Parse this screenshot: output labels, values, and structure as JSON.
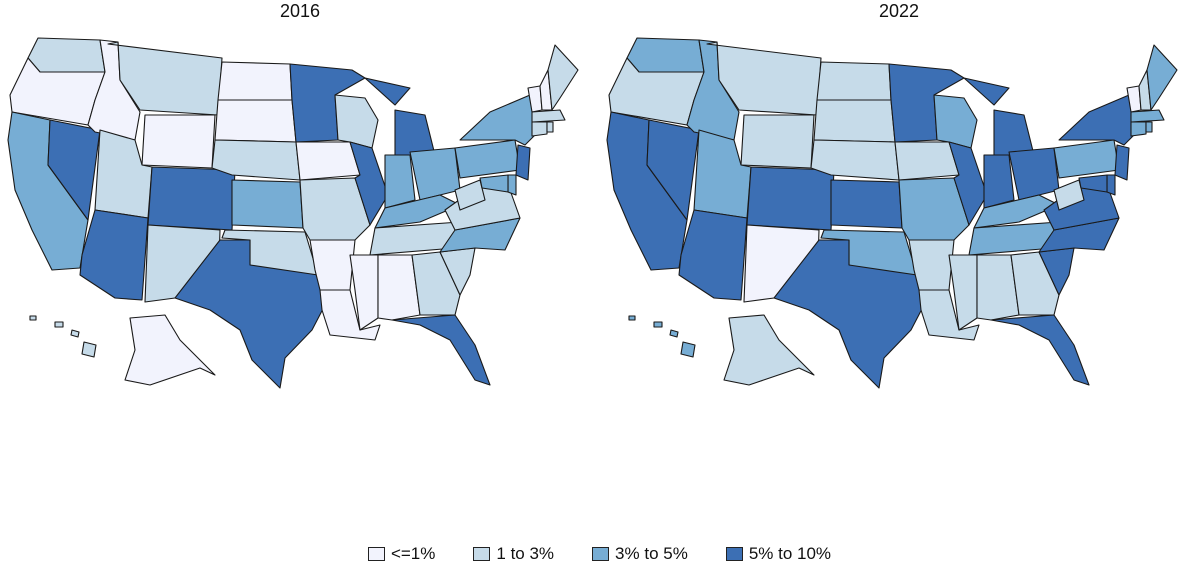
{
  "colors": {
    "c1": "#f2f3fd",
    "c2": "#c6dbe9",
    "c3": "#77add4",
    "c4": "#3c6fb4"
  },
  "panels": [
    {
      "title": "2016",
      "states": {
        "WA": "c2",
        "OR": "c1",
        "CA": "c3",
        "NV": "c4",
        "ID": "c1",
        "MT": "c2",
        "WY": "c1",
        "UT": "c2",
        "AZ": "c4",
        "CO": "c4",
        "NM": "c2",
        "ND": "c1",
        "SD": "c1",
        "NE": "c2",
        "KS": "c3",
        "OK": "c2",
        "TX": "c4",
        "MN": "c4",
        "IA": "c1",
        "MO": "c2",
        "AR": "c1",
        "LA": "c1",
        "WI": "c2",
        "IL": "c4",
        "MI": "c4",
        "IN": "c3",
        "OH": "c3",
        "KY": "c3",
        "TN": "c2",
        "MS": "c1",
        "AL": "c1",
        "GA": "c2",
        "FL": "c4",
        "SC": "c2",
        "NC": "c3",
        "VA": "c2",
        "WV": "c2",
        "PA": "c3",
        "NY": "c3",
        "VT": "c1",
        "NH": "c1",
        "ME": "c2",
        "MA": "c2",
        "CT": "c2",
        "RI": "c2",
        "NJ": "c4",
        "DE": "c3",
        "MD": "c3",
        "AK": "c1",
        "HI": "c2"
      }
    },
    {
      "title": "2022",
      "states": {
        "WA": "c3",
        "OR": "c2",
        "CA": "c4",
        "NV": "c4",
        "ID": "c3",
        "MT": "c2",
        "WY": "c2",
        "UT": "c3",
        "AZ": "c4",
        "CO": "c4",
        "NM": "c1",
        "ND": "c2",
        "SD": "c2",
        "NE": "c2",
        "KS": "c4",
        "OK": "c3",
        "TX": "c4",
        "MN": "c4",
        "IA": "c2",
        "MO": "c3",
        "AR": "c2",
        "LA": "c2",
        "WI": "c3",
        "IL": "c4",
        "MI": "c4",
        "IN": "c4",
        "OH": "c4",
        "KY": "c3",
        "TN": "c3",
        "MS": "c2",
        "AL": "c2",
        "GA": "c2",
        "FL": "c4",
        "SC": "c4",
        "NC": "c4",
        "VA": "c4",
        "WV": "c2",
        "PA": "c3",
        "NY": "c4",
        "VT": "c1",
        "NH": "c2",
        "ME": "c3",
        "MA": "c3",
        "CT": "c3",
        "RI": "c3",
        "NJ": "c4",
        "DE": "c4",
        "MD": "c4",
        "AK": "c2",
        "HI": "c3"
      }
    }
  ],
  "legend": [
    {
      "label": "<=1%",
      "color": "c1"
    },
    {
      "label": "1 to 3%",
      "color": "c2"
    },
    {
      "label": "3% to 5%",
      "color": "c3"
    },
    {
      "label": "5% to 10%",
      "color": "c4"
    }
  ]
}
